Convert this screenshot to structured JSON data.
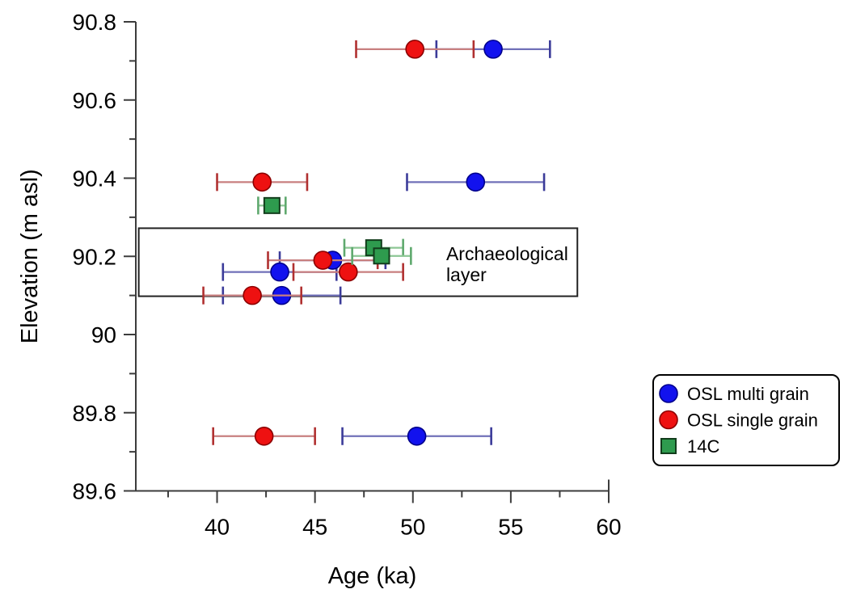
{
  "figure": {
    "background": "#ffffff",
    "axis_color": "#3c3c3c",
    "text_color": "#000000"
  },
  "chart_data": {
    "type": "scatter",
    "title": "",
    "xlabel": "Age (ka)",
    "ylabel": "Elevation (m asl)",
    "xlim": [
      35.85,
      60
    ],
    "ylim": [
      89.6,
      90.8
    ],
    "grid": false,
    "x_ticks": {
      "major": [
        {
          "v": 40,
          "label": "40"
        },
        {
          "v": 45,
          "label": "45"
        },
        {
          "v": 50,
          "label": "50"
        },
        {
          "v": 55,
          "label": "55"
        },
        {
          "v": 60,
          "label": "60"
        }
      ],
      "minor": [
        37.5,
        42.5,
        47.5,
        52.5,
        57.5
      ]
    },
    "y_ticks": {
      "major": [
        {
          "v": 90.8,
          "label": "90.8"
        },
        {
          "v": 90.6,
          "label": "90.6"
        },
        {
          "v": 90.4,
          "label": "90.4"
        },
        {
          "v": 90.2,
          "label": "90.2"
        },
        {
          "v": 90.0,
          "label": "90"
        },
        {
          "v": 89.8,
          "label": "89.8"
        },
        {
          "v": 89.6,
          "label": "89.6"
        }
      ],
      "minor": [
        90.7,
        90.5,
        90.3,
        90.1,
        89.9,
        89.7
      ]
    },
    "series": [
      {
        "name": "OSL multi grain",
        "marker": "circle",
        "fill": "#1212ee",
        "stroke": "#00008b",
        "bar_line": "#7070b8",
        "bar_cap": "#3b3b99",
        "points": [
          {
            "age": 54.1,
            "err": 2.9,
            "elev": 90.73
          },
          {
            "age": 53.2,
            "err": 3.5,
            "elev": 90.39
          },
          {
            "age": 45.9,
            "err": 2.7,
            "elev": 90.19
          },
          {
            "age": 43.2,
            "err": 2.9,
            "elev": 90.16
          },
          {
            "age": 43.3,
            "err": 3.0,
            "elev": 90.1
          },
          {
            "age": 50.2,
            "err": 3.8,
            "elev": 89.74
          }
        ]
      },
      {
        "name": "OSL single grain",
        "marker": "circle",
        "fill": "#ee1111",
        "stroke": "#8b0000",
        "bar_line": "#c87f7f",
        "bar_cap": "#b03030",
        "points": [
          {
            "age": 50.1,
            "err": 3.0,
            "elev": 90.73
          },
          {
            "age": 42.3,
            "err": 2.3,
            "elev": 90.39
          },
          {
            "age": 45.4,
            "err": 2.8,
            "elev": 90.19
          },
          {
            "age": 46.7,
            "err": 2.8,
            "elev": 90.16
          },
          {
            "age": 41.8,
            "err": 2.5,
            "elev": 90.1
          },
          {
            "age": 42.4,
            "err": 2.6,
            "elev": 89.74
          }
        ]
      },
      {
        "name": "14C",
        "marker": "square",
        "fill": "#2e9b4e",
        "stroke": "#123d1c",
        "bar_line": "#8cc694",
        "bar_cap": "#5fa96e",
        "points": [
          {
            "age": 42.8,
            "err": 0.7,
            "elev": 90.33
          },
          {
            "age": 48.0,
            "err": 1.5,
            "elev": 90.222
          },
          {
            "age": 48.4,
            "err": 1.5,
            "elev": 90.201
          }
        ]
      }
    ],
    "annotation": {
      "lines": [
        "Archaeological",
        "layer"
      ],
      "box": {
        "age_min": 36.0,
        "age_max": 58.4,
        "elev_min": 90.098,
        "elev_max": 90.272
      },
      "text_age": 51.7,
      "text_elev": 90.19
    },
    "legend": {
      "position": "right",
      "items": [
        "OSL multi grain",
        "OSL single grain",
        "14C"
      ]
    }
  }
}
